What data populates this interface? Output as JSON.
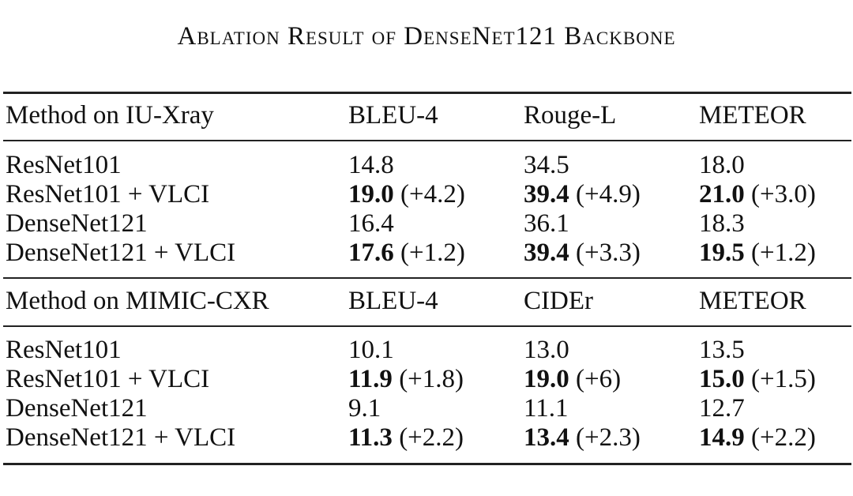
{
  "caption": "Ablation Result of DenseNet121 Backbone",
  "sections": [
    {
      "header": [
        "Method on IU-Xray",
        "BLEU-4",
        "Rouge-L",
        "METEOR"
      ],
      "rows": [
        {
          "method": "ResNet101",
          "cells": [
            {
              "value": "14.8",
              "delta": "",
              "bold": false
            },
            {
              "value": "34.5",
              "delta": "",
              "bold": false
            },
            {
              "value": "18.0",
              "delta": "",
              "bold": false
            }
          ]
        },
        {
          "method": "ResNet101 + VLCI",
          "cells": [
            {
              "value": "19.0",
              "delta": "(+4.2)",
              "bold": true
            },
            {
              "value": "39.4",
              "delta": "(+4.9)",
              "bold": true
            },
            {
              "value": "21.0",
              "delta": "(+3.0)",
              "bold": true
            }
          ]
        },
        {
          "method": "DenseNet121",
          "cells": [
            {
              "value": "16.4",
              "delta": "",
              "bold": false
            },
            {
              "value": "36.1",
              "delta": "",
              "bold": false
            },
            {
              "value": "18.3",
              "delta": "",
              "bold": false
            }
          ]
        },
        {
          "method": "DenseNet121 + VLCI",
          "cells": [
            {
              "value": "17.6",
              "delta": "(+1.2)",
              "bold": true
            },
            {
              "value": "39.4",
              "delta": "(+3.3)",
              "bold": true
            },
            {
              "value": "19.5",
              "delta": "(+1.2)",
              "bold": true
            }
          ]
        }
      ]
    },
    {
      "header": [
        "Method on MIMIC-CXR",
        "BLEU-4",
        "CIDEr",
        "METEOR"
      ],
      "rows": [
        {
          "method": "ResNet101",
          "cells": [
            {
              "value": "10.1",
              "delta": "",
              "bold": false
            },
            {
              "value": "13.0",
              "delta": "",
              "bold": false
            },
            {
              "value": "13.5",
              "delta": "",
              "bold": false
            }
          ]
        },
        {
          "method": "ResNet101 + VLCI",
          "cells": [
            {
              "value": "11.9",
              "delta": "(+1.8)",
              "bold": true
            },
            {
              "value": "19.0",
              "delta": "(+6)",
              "bold": true
            },
            {
              "value": "15.0",
              "delta": "(+1.5)",
              "bold": true
            }
          ]
        },
        {
          "method": "DenseNet121",
          "cells": [
            {
              "value": "9.1",
              "delta": "",
              "bold": false
            },
            {
              "value": "11.1",
              "delta": "",
              "bold": false
            },
            {
              "value": "12.7",
              "delta": "",
              "bold": false
            }
          ]
        },
        {
          "method": "DenseNet121 + VLCI",
          "cells": [
            {
              "value": "11.3",
              "delta": "(+2.2)",
              "bold": true
            },
            {
              "value": "13.4",
              "delta": "(+2.3)",
              "bold": true
            },
            {
              "value": "14.9",
              "delta": "(+2.2)",
              "bold": true
            }
          ]
        }
      ]
    }
  ]
}
